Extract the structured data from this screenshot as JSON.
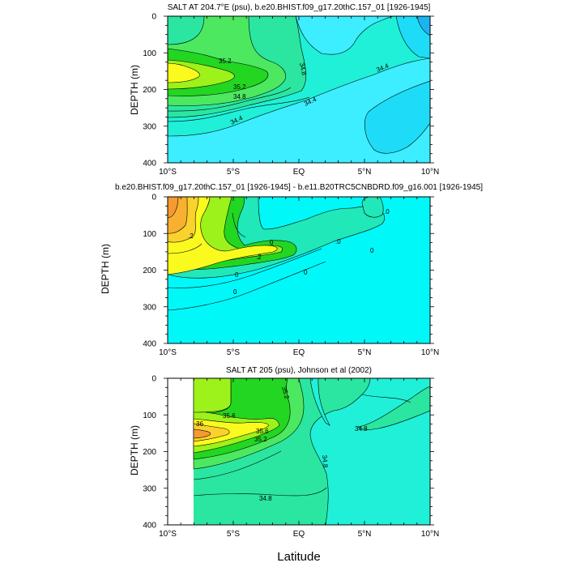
{
  "chart_data": [
    {
      "type": "heatmap",
      "title": "SALT AT 204.7°E (psu), b.e20.BHIST.f09_g17.20thC.157_01 [1926-1945]",
      "xlabel": "",
      "ylabel": "DEPTH (m)",
      "xlim": [
        -10,
        10
      ],
      "ylim": [
        400,
        0
      ],
      "x_ticks": [
        -10,
        -5,
        0,
        5,
        10
      ],
      "x_tick_labels": [
        "10°S",
        "5°S",
        "EQ",
        "5°N",
        "10°N"
      ],
      "y_ticks": [
        0,
        100,
        200,
        300,
        400
      ],
      "contour_labels": [
        "35.2",
        "34.8",
        "35.2",
        "34.8",
        "34.4",
        "34.4",
        "34.4"
      ],
      "color_levels": [
        {
          "value": "34.0-34.2",
          "color": "#1cb4f0"
        },
        {
          "value": "34.2-34.4",
          "color": "#1edcf8"
        },
        {
          "value": "34.4-34.6",
          "color": "#3ceeff"
        },
        {
          "value": "34.6-34.8",
          "color": "#20f0d8"
        },
        {
          "value": "34.8-35.0",
          "color": "#2ae6a0"
        },
        {
          "value": "35.0-35.2",
          "color": "#4ce860"
        },
        {
          "value": "35.2-35.4",
          "color": "#22d622"
        },
        {
          "value": "35.4-35.6",
          "color": "#9cf21a"
        },
        {
          "value": "35.6-35.8",
          "color": "#fafa1e"
        }
      ]
    },
    {
      "type": "heatmap",
      "title": "b.e20.BHIST.f09_g17.20thC.157_01 [1926-1945] - b.e11.B20TRC5CNBDRD.f09_g16.001 [1926-1945]",
      "xlabel": "",
      "ylabel": "DEPTH (m)",
      "xlim": [
        -10,
        10
      ],
      "ylim": [
        400,
        0
      ],
      "x_ticks": [
        -10,
        -5,
        0,
        5,
        10
      ],
      "x_tick_labels": [
        "10°S",
        "5°S",
        "EQ",
        "5°N",
        "10°N"
      ],
      "y_ticks": [
        0,
        100,
        200,
        300,
        400
      ],
      "contour_labels": [
        ".0",
        ".2",
        "0",
        ".0",
        "0",
        "0",
        ".2",
        "0",
        "0"
      ],
      "color_levels": [
        {
          "value": "<0",
          "color": "#00f8f8"
        },
        {
          "value": "0-0.1",
          "color": "#20e8b8"
        },
        {
          "value": "0.1-0.2",
          "color": "#22d622"
        },
        {
          "value": "0.2-0.3",
          "color": "#9cf21a"
        },
        {
          "value": "0.3-0.4",
          "color": "#fafa1e"
        },
        {
          "value": "0.4-0.5",
          "color": "#fad22e"
        },
        {
          "value": "0.5-0.6",
          "color": "#f8b030"
        },
        {
          "value": ">0.6",
          "color": "#f59a30"
        }
      ]
    },
    {
      "type": "heatmap",
      "title": "SALT AT 205 (psu), Johnson et al (2002)",
      "xlabel": "Latitude",
      "ylabel": "DEPTH (m)",
      "xlim": [
        -10,
        10
      ],
      "ylim": [
        400,
        0
      ],
      "data_xlim": [
        -8,
        10
      ],
      "x_ticks": [
        -10,
        -5,
        0,
        5,
        10
      ],
      "x_tick_labels": [
        "10°S",
        "5°S",
        "EQ",
        "5°N",
        "10°N"
      ],
      "y_ticks": [
        0,
        100,
        200,
        300,
        400
      ],
      "contour_labels": [
        "35.2",
        "35.6",
        "36",
        "35.6",
        "35.2",
        "34.8",
        "34.8",
        "34.8"
      ],
      "color_levels": [
        {
          "value": "34.6-34.8",
          "color": "#20f0d8"
        },
        {
          "value": "34.8-35.0",
          "color": "#2ae6a0"
        },
        {
          "value": "35.0-35.2",
          "color": "#4ce860"
        },
        {
          "value": "35.2-35.4",
          "color": "#22d622"
        },
        {
          "value": "35.4-35.6",
          "color": "#9cf21a"
        },
        {
          "value": "35.6-35.8",
          "color": "#fafa1e"
        },
        {
          "value": "35.8-36.0",
          "color": "#fad22e"
        },
        {
          "value": ">36.0",
          "color": "#f59a30"
        }
      ]
    }
  ]
}
